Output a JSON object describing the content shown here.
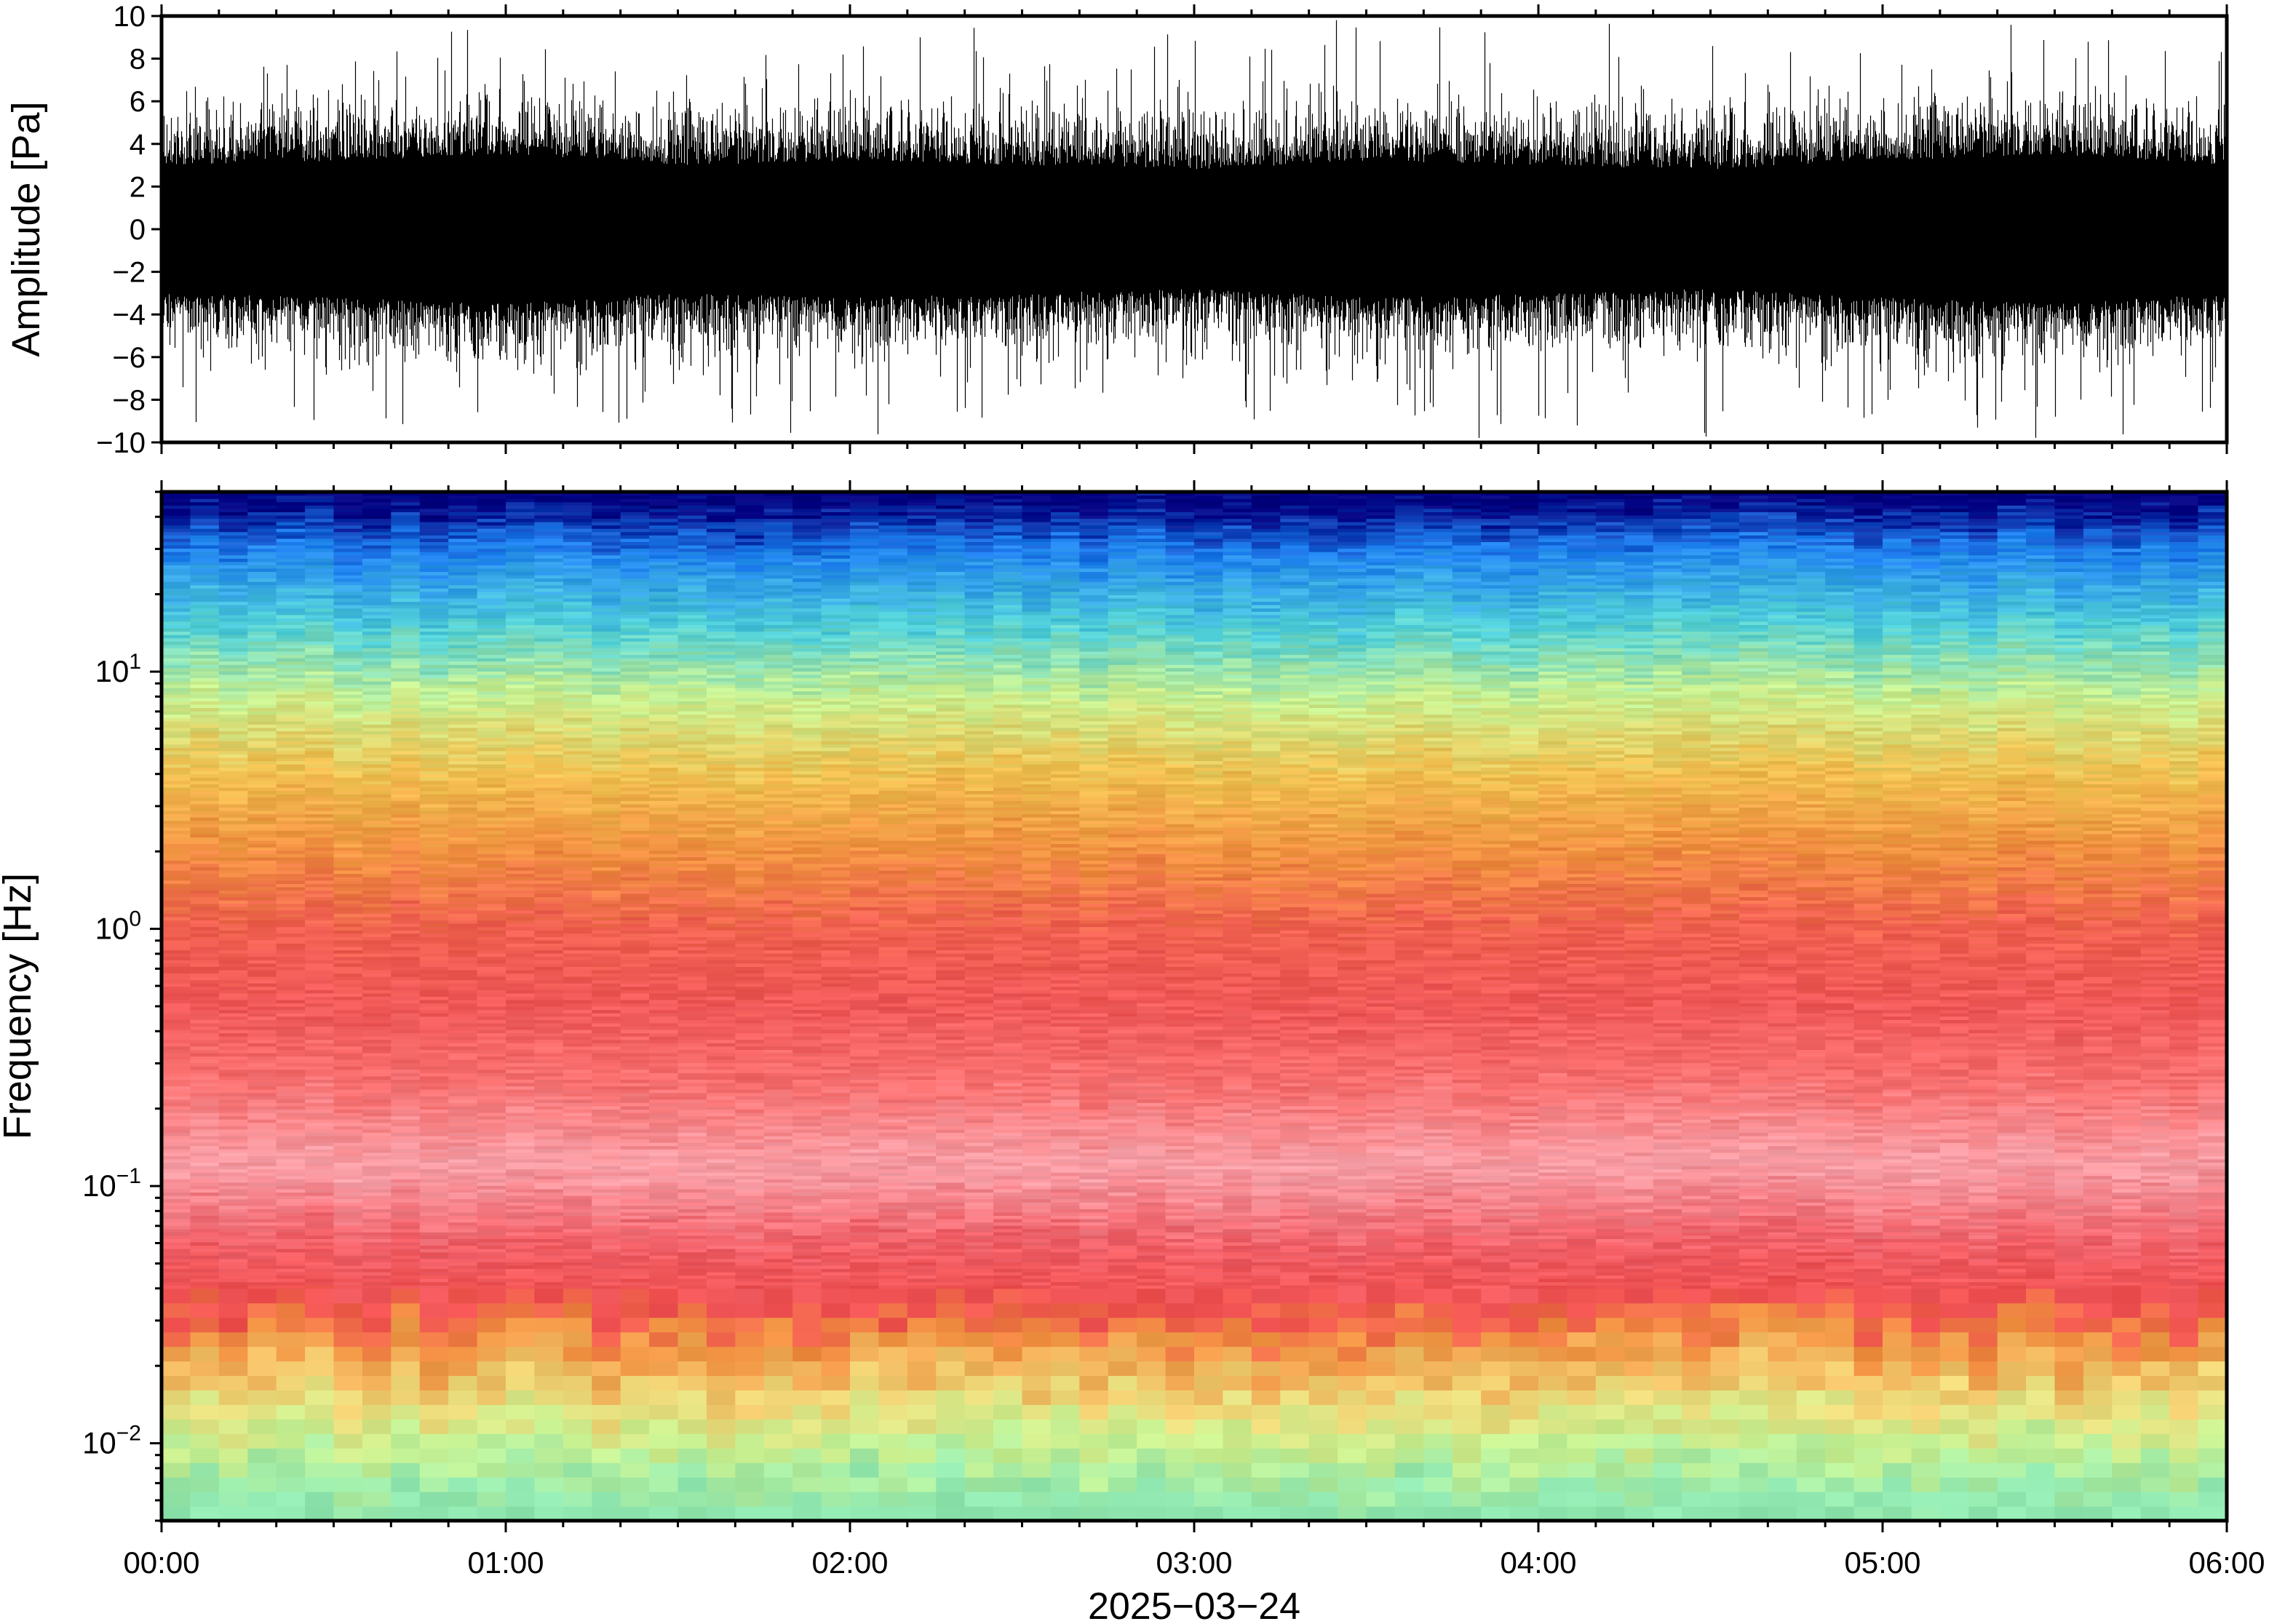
{
  "chart_data": [
    {
      "type": "line",
      "panel": "waveform",
      "ylabel": "Amplitude [Pa]",
      "ylim": [
        -10,
        10
      ],
      "yticks": [
        "10",
        "8",
        "6",
        "4",
        "2",
        "0",
        "−2",
        "−4",
        "−6",
        "−8",
        "−10"
      ],
      "ytick_values": [
        10,
        8,
        6,
        4,
        2,
        0,
        -2,
        -4,
        -6,
        -8,
        -10
      ],
      "xlim": [
        "00:00",
        "06:00"
      ],
      "grid": false,
      "legend": "none",
      "trace_color": "#000000",
      "envelope": {
        "x": [
          "00:00",
          "00:30",
          "01:00",
          "01:30",
          "02:00",
          "02:30",
          "03:00",
          "03:30",
          "04:00",
          "04:30",
          "05:00",
          "05:30",
          "06:00"
        ],
        "core_max": [
          3.0,
          3.2,
          3.5,
          3.0,
          3.2,
          3.0,
          2.8,
          3.2,
          3.0,
          2.8,
          3.2,
          3.5,
          3.0
        ],
        "core_min": [
          -3.0,
          -3.2,
          -3.5,
          -3.0,
          -3.2,
          -3.0,
          -2.8,
          -3.2,
          -3.0,
          -2.8,
          -3.2,
          -3.5,
          -3.0
        ],
        "spike_max": [
          10,
          9,
          10,
          8,
          9,
          10,
          9,
          10,
          9,
          9,
          10,
          10,
          8
        ],
        "spike_min": [
          -10,
          -9,
          -10,
          -9,
          -10,
          -10,
          -9,
          -10,
          -10,
          -10,
          -9,
          -10,
          -10
        ]
      }
    },
    {
      "type": "heatmap",
      "panel": "spectrogram",
      "ylabel": "Frequency [Hz]",
      "yscale": "log",
      "ylim": [
        0.005,
        50
      ],
      "yticks": [
        {
          "base": "10",
          "exp": "1",
          "value": 10
        },
        {
          "base": "10",
          "exp": "0",
          "value": 1
        },
        {
          "base": "10",
          "exp": "−1",
          "value": 0.1
        },
        {
          "base": "10",
          "exp": "−2",
          "value": 0.01
        }
      ],
      "xlabel": "2025−03−24",
      "xticks": [
        "00:00",
        "01:00",
        "02:00",
        "03:00",
        "04:00",
        "05:00",
        "06:00"
      ],
      "xlim": [
        "00:00",
        "06:00"
      ],
      "colormap": "jet-like, low power pale green → yellow → orange → red → pink, high frequency cyan → blue",
      "colormap_stops": [
        "#000080",
        "#0040d0",
        "#1e90ff",
        "#40c8f0",
        "#60e0c8",
        "#c8f090",
        "#f0e878",
        "#f8c050",
        "#f09040",
        "#f05858",
        "#f87070",
        "#f8a0a8"
      ],
      "band_profile": {
        "frequency_hz": [
          45,
          30,
          15,
          8,
          4,
          2,
          1,
          0.5,
          0.25,
          0.12,
          0.06,
          0.035,
          0.025,
          0.015,
          0.01,
          0.006
        ],
        "color": [
          "#000080",
          "#1e80f0",
          "#50d0d8",
          "#c8f090",
          "#f0c050",
          "#f09040",
          "#f06050",
          "#f05858",
          "#f87070",
          "#f8a0a8",
          "#f06068",
          "#f05050",
          "#f09040",
          "#f0d878",
          "#c8f090",
          "#90e8b0"
        ]
      },
      "grid": false,
      "legend": "none"
    }
  ]
}
